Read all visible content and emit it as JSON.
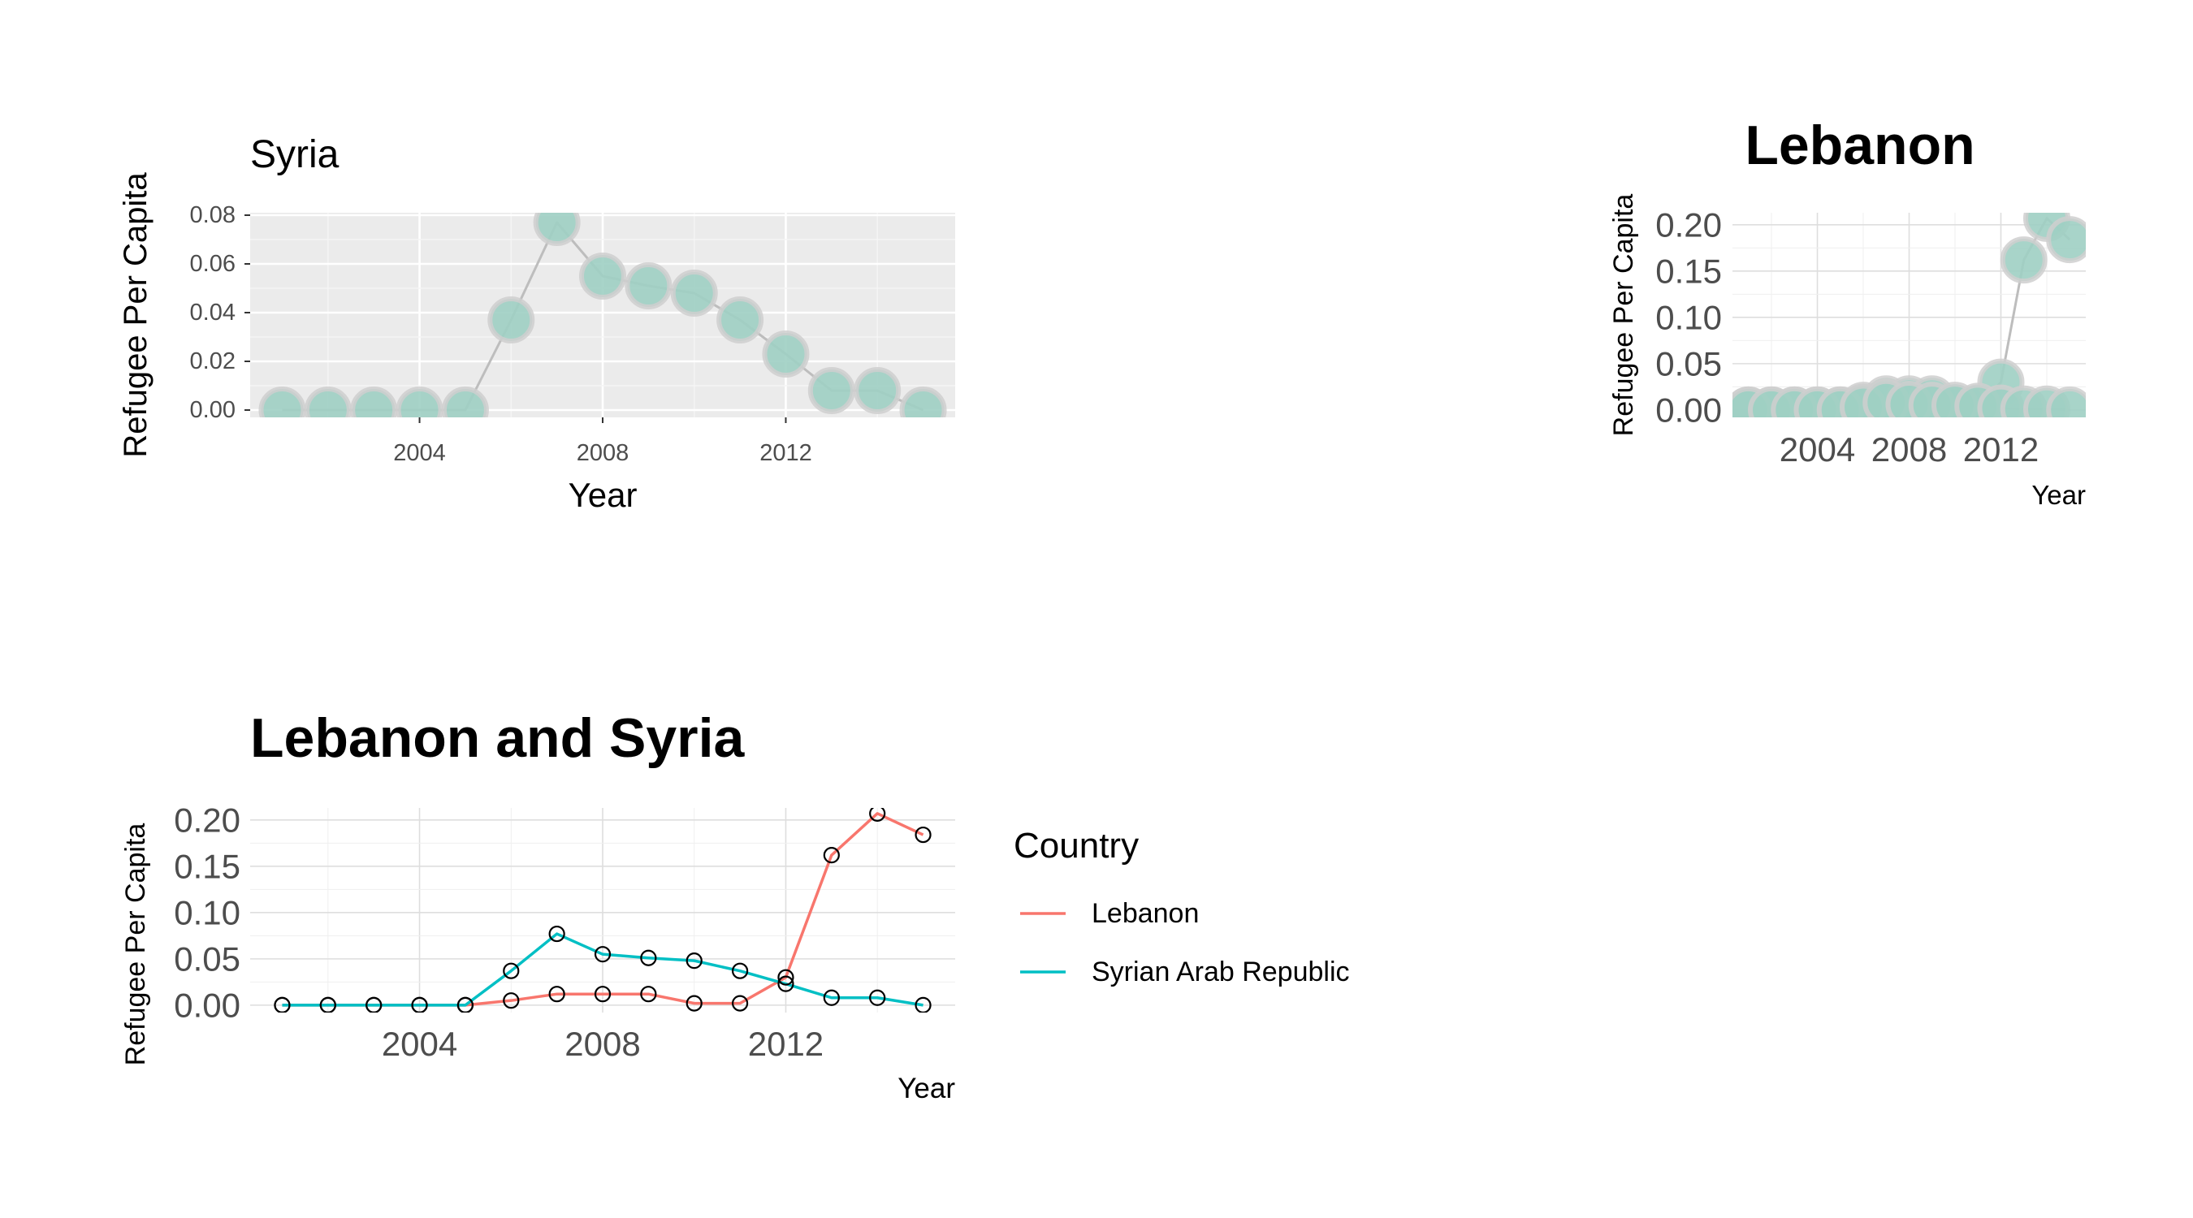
{
  "chart_data": [
    {
      "type": "line",
      "title": "Syria",
      "xlabel": "Year",
      "ylabel": "Refugee Per Capita",
      "xlim": [
        2000.3,
        2015.7
      ],
      "ylim": [
        -0.003,
        0.081
      ],
      "x_ticks": [
        2004,
        2008,
        2012
      ],
      "x_tick_labels": [
        "2004",
        "2008",
        "2012"
      ],
      "y_ticks": [
        0,
        0.02,
        0.04,
        0.06,
        0.08
      ],
      "y_tick_labels": [
        "0.00",
        "0.02",
        "0.04",
        "0.06",
        "0.08"
      ],
      "grid": true,
      "panel_background": "gray",
      "legend": "none",
      "point_color": "#9ecfc3",
      "series": [
        {
          "color": "#bdbdbd",
          "x": [
            2001,
            2002,
            2003,
            2004,
            2005,
            2006,
            2007,
            2008,
            2009,
            2010,
            2011,
            2012,
            2013,
            2014,
            2015
          ],
          "values": [
            0.0,
            0.0,
            0.0,
            0.0,
            0.0,
            0.037,
            0.077,
            0.055,
            0.051,
            0.048,
            0.037,
            0.023,
            0.008,
            0.008,
            0.0
          ]
        }
      ]
    },
    {
      "type": "line",
      "title": "Lebanon",
      "xlabel": "Year",
      "ylabel": "Refugee Per Capita",
      "xlim": [
        2000.3,
        2015.7
      ],
      "ylim": [
        -0.008,
        0.213
      ],
      "x_ticks": [
        2004,
        2008,
        2012
      ],
      "x_tick_labels": [
        "2004",
        "2008",
        "2012"
      ],
      "y_ticks": [
        0,
        0.05,
        0.1,
        0.15,
        0.2
      ],
      "y_tick_labels": [
        "0.00",
        "0.05",
        "0.10",
        "0.15",
        "0.20"
      ],
      "grid": true,
      "panel_background": "white",
      "legend": "none",
      "point_color": "#9ecfc3",
      "series": [
        {
          "color": "#bdbdbd",
          "x": [
            2001,
            2002,
            2003,
            2004,
            2005,
            2006,
            2007,
            2008,
            2009,
            2010,
            2011,
            2012,
            2013,
            2014,
            2015
          ],
          "values": [
            0.0,
            0.0,
            0.0,
            0.0,
            0.0,
            0.005,
            0.012,
            0.012,
            0.012,
            0.002,
            0.002,
            0.03,
            0.162,
            0.207,
            0.184
          ]
        },
        {
          "color": "#bdbdbd",
          "x": [
            2001,
            2002,
            2003,
            2004,
            2005,
            2006,
            2007,
            2008,
            2009,
            2010,
            2011,
            2012,
            2013,
            2014,
            2015
          ],
          "values": [
            0.0,
            0.0,
            0.0,
            0.0,
            0.0,
            0.003,
            0.008,
            0.006,
            0.005,
            0.005,
            0.004,
            0.002,
            0.001,
            0.001,
            0.0
          ]
        }
      ]
    },
    {
      "type": "line",
      "title": "Lebanon and Syria",
      "xlabel": "Year",
      "ylabel": "Refugee Per Capita",
      "xlim": [
        2000.3,
        2015.7
      ],
      "ylim": [
        -0.008,
        0.213
      ],
      "x_ticks": [
        2004,
        2008,
        2012
      ],
      "x_tick_labels": [
        "2004",
        "2008",
        "2012"
      ],
      "y_ticks": [
        0,
        0.05,
        0.1,
        0.15,
        0.2
      ],
      "y_tick_labels": [
        "0.00",
        "0.05",
        "0.10",
        "0.15",
        "0.20"
      ],
      "grid": true,
      "panel_background": "white",
      "legend": "right",
      "legend_title": "Country",
      "series": [
        {
          "name": "Lebanon",
          "color": "#f8766d",
          "x": [
            2001,
            2002,
            2003,
            2004,
            2005,
            2006,
            2007,
            2008,
            2009,
            2010,
            2011,
            2012,
            2013,
            2014,
            2015
          ],
          "values": [
            0.0,
            0.0,
            0.0,
            0.0,
            0.0,
            0.005,
            0.012,
            0.012,
            0.012,
            0.002,
            0.002,
            0.03,
            0.162,
            0.207,
            0.184
          ]
        },
        {
          "name": "Syrian Arab Republic",
          "color": "#00bfc4",
          "x": [
            2001,
            2002,
            2003,
            2004,
            2005,
            2006,
            2007,
            2008,
            2009,
            2010,
            2011,
            2012,
            2013,
            2014,
            2015
          ],
          "values": [
            0.0,
            0.0,
            0.0,
            0.0,
            0.0,
            0.037,
            0.077,
            0.055,
            0.051,
            0.048,
            0.037,
            0.023,
            0.008,
            0.008,
            0.0
          ]
        }
      ]
    }
  ]
}
